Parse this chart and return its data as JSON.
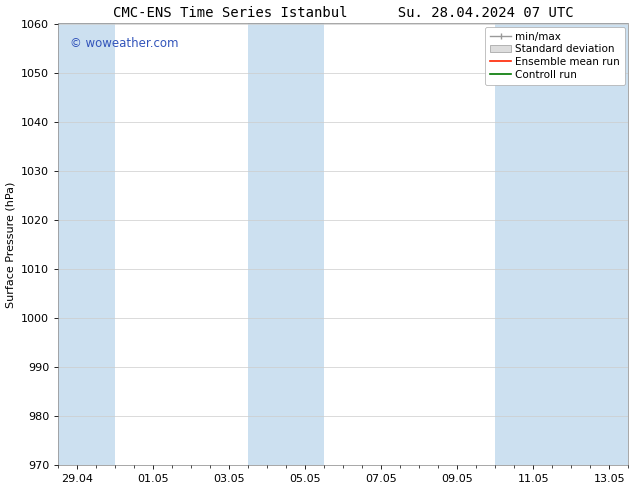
{
  "title": "CMC-ENS Time Series Istanbul      Su. 28.04.2024 07 UTC",
  "ylabel": "Surface Pressure (hPa)",
  "ylim": [
    970,
    1060
  ],
  "yticks": [
    970,
    980,
    990,
    1000,
    1010,
    1020,
    1030,
    1040,
    1050,
    1060
  ],
  "xlim_start": 0.0,
  "xlim_end": 15.0,
  "xtick_labels": [
    "29.04",
    "01.05",
    "03.05",
    "05.05",
    "07.05",
    "09.05",
    "11.05",
    "13.05"
  ],
  "xtick_positions": [
    0.5,
    2.5,
    4.5,
    6.5,
    8.5,
    10.5,
    12.5,
    14.5
  ],
  "shaded_bands": [
    {
      "x_start": 0.0,
      "x_end": 1.5,
      "color": "#cce0f0"
    },
    {
      "x_start": 5.0,
      "x_end": 7.0,
      "color": "#cce0f0"
    },
    {
      "x_start": 11.5,
      "x_end": 15.0,
      "color": "#cce0f0"
    }
  ],
  "legend_labels": [
    "min/max",
    "Standard deviation",
    "Ensemble mean run",
    "Controll run"
  ],
  "legend_colors_line": [
    "#aaaaaa",
    "#cccccc",
    "#ff0000",
    "#008000"
  ],
  "watermark_text": "© woweather.com",
  "watermark_color": "#3355bb",
  "background_color": "#ffffff",
  "grid_color": "#cccccc",
  "spine_color": "#999999",
  "title_fontsize": 10,
  "axis_label_fontsize": 8,
  "tick_fontsize": 8,
  "legend_fontsize": 7.5,
  "watermark_fontsize": 8.5
}
